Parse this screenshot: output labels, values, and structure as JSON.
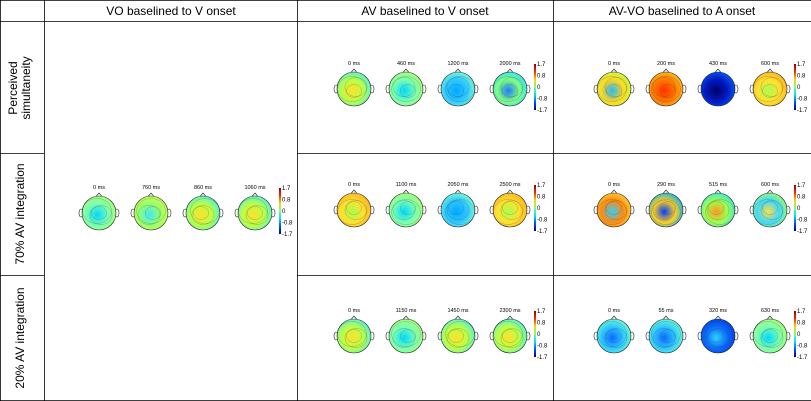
{
  "figure": {
    "column_headers": [
      "VO baselined to V onset",
      "AV baselined to V onset",
      "AV-VO baselined to A onset"
    ],
    "row_labels": [
      [
        "Perceived",
        "simultaneity"
      ],
      [
        "70% AV integration"
      ],
      [
        "20% AV integration"
      ]
    ],
    "colorbar": {
      "labels": [
        "1.7",
        "0.8",
        "0",
        "-0.8",
        "-1.7"
      ],
      "colors": [
        "#8b0000",
        "#ff2a00",
        "#ffd200",
        "#7dff7a",
        "#00e0ff",
        "#0050ff",
        "#00008b"
      ]
    },
    "panels": [
      {
        "id": "vo",
        "times": [
          "0 ms",
          "760 ms",
          "860 ms",
          "1060 ms"
        ],
        "maps": [
          "cyan-green",
          "green-cyan",
          "green-yellow",
          "green-yellow"
        ]
      },
      {
        "id": "av-perceived",
        "times": [
          "0 ms",
          "460 ms",
          "1200 ms",
          "2000 ms"
        ],
        "maps": [
          "green-yellow",
          "cyan-green",
          "cyan",
          "green-blue"
        ]
      },
      {
        "id": "av-70",
        "times": [
          "0 ms",
          "1100 ms",
          "2050 ms",
          "2500 ms"
        ],
        "maps": [
          "yellow-green",
          "cyan-green",
          "cyan",
          "yellow-green"
        ]
      },
      {
        "id": "av-20",
        "times": [
          "0 ms",
          "1150 ms",
          "1450 ms",
          "2300 ms"
        ],
        "maps": [
          "green-yellow",
          "cyan-green",
          "green-yellow",
          "green-yellow"
        ]
      },
      {
        "id": "diff-perceived",
        "times": [
          "0 ms",
          "200 ms",
          "430 ms",
          "600 ms"
        ],
        "maps": [
          "yellow-cyan",
          "orange-red",
          "deep-blue",
          "yellow-green"
        ]
      },
      {
        "id": "diff-70",
        "times": [
          "0 ms",
          "290 ms",
          "515 ms",
          "600 ms"
        ],
        "maps": [
          "orange-cyan",
          "yellow-blue",
          "green-orange",
          "cyan-yellow"
        ]
      },
      {
        "id": "diff-20",
        "times": [
          "0 ms",
          "55 ms",
          "320 ms",
          "630 ms"
        ],
        "maps": [
          "cyan-blue",
          "cyan-blue",
          "blue-cyan",
          "cyan-green"
        ]
      }
    ]
  }
}
